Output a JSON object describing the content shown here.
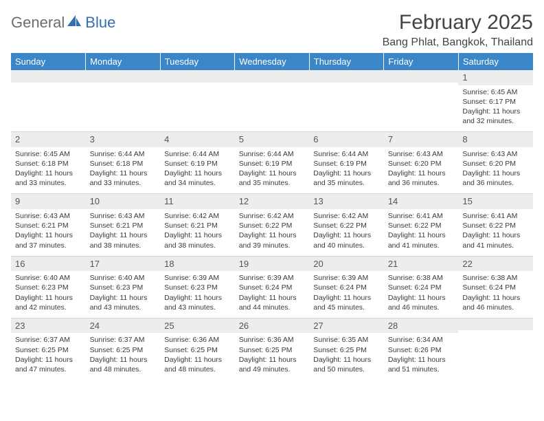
{
  "branding": {
    "logo_text_1": "General",
    "logo_text_2": "Blue",
    "logo_color": "#2f6fb3",
    "logo_gray": "#6e6e6e"
  },
  "title": {
    "month": "February 2025",
    "location": "Bang Phlat, Bangkok, Thailand",
    "month_fontsize": 30,
    "location_fontsize": 16,
    "text_color": "#444444"
  },
  "colors": {
    "header_bg": "#3b86c6",
    "header_text": "#ffffff",
    "band_bg": "#eceded",
    "band_border": "#cfd6dc",
    "body_text": "#3a3a3a",
    "background": "#ffffff"
  },
  "typography": {
    "body_fontsize": 10.5,
    "header_fontsize": 13,
    "daynum_fontsize": 13,
    "font_family": "Arial"
  },
  "day_headers": [
    "Sunday",
    "Monday",
    "Tuesday",
    "Wednesday",
    "Thursday",
    "Friday",
    "Saturday"
  ],
  "weeks": [
    [
      {
        "num": "",
        "sunrise": "",
        "sunset": "",
        "daylight": ""
      },
      {
        "num": "",
        "sunrise": "",
        "sunset": "",
        "daylight": ""
      },
      {
        "num": "",
        "sunrise": "",
        "sunset": "",
        "daylight": ""
      },
      {
        "num": "",
        "sunrise": "",
        "sunset": "",
        "daylight": ""
      },
      {
        "num": "",
        "sunrise": "",
        "sunset": "",
        "daylight": ""
      },
      {
        "num": "",
        "sunrise": "",
        "sunset": "",
        "daylight": ""
      },
      {
        "num": "1",
        "sunrise": "Sunrise: 6:45 AM",
        "sunset": "Sunset: 6:17 PM",
        "daylight": "Daylight: 11 hours and 32 minutes."
      }
    ],
    [
      {
        "num": "2",
        "sunrise": "Sunrise: 6:45 AM",
        "sunset": "Sunset: 6:18 PM",
        "daylight": "Daylight: 11 hours and 33 minutes."
      },
      {
        "num": "3",
        "sunrise": "Sunrise: 6:44 AM",
        "sunset": "Sunset: 6:18 PM",
        "daylight": "Daylight: 11 hours and 33 minutes."
      },
      {
        "num": "4",
        "sunrise": "Sunrise: 6:44 AM",
        "sunset": "Sunset: 6:19 PM",
        "daylight": "Daylight: 11 hours and 34 minutes."
      },
      {
        "num": "5",
        "sunrise": "Sunrise: 6:44 AM",
        "sunset": "Sunset: 6:19 PM",
        "daylight": "Daylight: 11 hours and 35 minutes."
      },
      {
        "num": "6",
        "sunrise": "Sunrise: 6:44 AM",
        "sunset": "Sunset: 6:19 PM",
        "daylight": "Daylight: 11 hours and 35 minutes."
      },
      {
        "num": "7",
        "sunrise": "Sunrise: 6:43 AM",
        "sunset": "Sunset: 6:20 PM",
        "daylight": "Daylight: 11 hours and 36 minutes."
      },
      {
        "num": "8",
        "sunrise": "Sunrise: 6:43 AM",
        "sunset": "Sunset: 6:20 PM",
        "daylight": "Daylight: 11 hours and 36 minutes."
      }
    ],
    [
      {
        "num": "9",
        "sunrise": "Sunrise: 6:43 AM",
        "sunset": "Sunset: 6:21 PM",
        "daylight": "Daylight: 11 hours and 37 minutes."
      },
      {
        "num": "10",
        "sunrise": "Sunrise: 6:43 AM",
        "sunset": "Sunset: 6:21 PM",
        "daylight": "Daylight: 11 hours and 38 minutes."
      },
      {
        "num": "11",
        "sunrise": "Sunrise: 6:42 AM",
        "sunset": "Sunset: 6:21 PM",
        "daylight": "Daylight: 11 hours and 38 minutes."
      },
      {
        "num": "12",
        "sunrise": "Sunrise: 6:42 AM",
        "sunset": "Sunset: 6:22 PM",
        "daylight": "Daylight: 11 hours and 39 minutes."
      },
      {
        "num": "13",
        "sunrise": "Sunrise: 6:42 AM",
        "sunset": "Sunset: 6:22 PM",
        "daylight": "Daylight: 11 hours and 40 minutes."
      },
      {
        "num": "14",
        "sunrise": "Sunrise: 6:41 AM",
        "sunset": "Sunset: 6:22 PM",
        "daylight": "Daylight: 11 hours and 41 minutes."
      },
      {
        "num": "15",
        "sunrise": "Sunrise: 6:41 AM",
        "sunset": "Sunset: 6:22 PM",
        "daylight": "Daylight: 11 hours and 41 minutes."
      }
    ],
    [
      {
        "num": "16",
        "sunrise": "Sunrise: 6:40 AM",
        "sunset": "Sunset: 6:23 PM",
        "daylight": "Daylight: 11 hours and 42 minutes."
      },
      {
        "num": "17",
        "sunrise": "Sunrise: 6:40 AM",
        "sunset": "Sunset: 6:23 PM",
        "daylight": "Daylight: 11 hours and 43 minutes."
      },
      {
        "num": "18",
        "sunrise": "Sunrise: 6:39 AM",
        "sunset": "Sunset: 6:23 PM",
        "daylight": "Daylight: 11 hours and 43 minutes."
      },
      {
        "num": "19",
        "sunrise": "Sunrise: 6:39 AM",
        "sunset": "Sunset: 6:24 PM",
        "daylight": "Daylight: 11 hours and 44 minutes."
      },
      {
        "num": "20",
        "sunrise": "Sunrise: 6:39 AM",
        "sunset": "Sunset: 6:24 PM",
        "daylight": "Daylight: 11 hours and 45 minutes."
      },
      {
        "num": "21",
        "sunrise": "Sunrise: 6:38 AM",
        "sunset": "Sunset: 6:24 PM",
        "daylight": "Daylight: 11 hours and 46 minutes."
      },
      {
        "num": "22",
        "sunrise": "Sunrise: 6:38 AM",
        "sunset": "Sunset: 6:24 PM",
        "daylight": "Daylight: 11 hours and 46 minutes."
      }
    ],
    [
      {
        "num": "23",
        "sunrise": "Sunrise: 6:37 AM",
        "sunset": "Sunset: 6:25 PM",
        "daylight": "Daylight: 11 hours and 47 minutes."
      },
      {
        "num": "24",
        "sunrise": "Sunrise: 6:37 AM",
        "sunset": "Sunset: 6:25 PM",
        "daylight": "Daylight: 11 hours and 48 minutes."
      },
      {
        "num": "25",
        "sunrise": "Sunrise: 6:36 AM",
        "sunset": "Sunset: 6:25 PM",
        "daylight": "Daylight: 11 hours and 48 minutes."
      },
      {
        "num": "26",
        "sunrise": "Sunrise: 6:36 AM",
        "sunset": "Sunset: 6:25 PM",
        "daylight": "Daylight: 11 hours and 49 minutes."
      },
      {
        "num": "27",
        "sunrise": "Sunrise: 6:35 AM",
        "sunset": "Sunset: 6:25 PM",
        "daylight": "Daylight: 11 hours and 50 minutes."
      },
      {
        "num": "28",
        "sunrise": "Sunrise: 6:34 AM",
        "sunset": "Sunset: 6:26 PM",
        "daylight": "Daylight: 11 hours and 51 minutes."
      },
      {
        "num": "",
        "sunrise": "",
        "sunset": "",
        "daylight": ""
      }
    ]
  ]
}
